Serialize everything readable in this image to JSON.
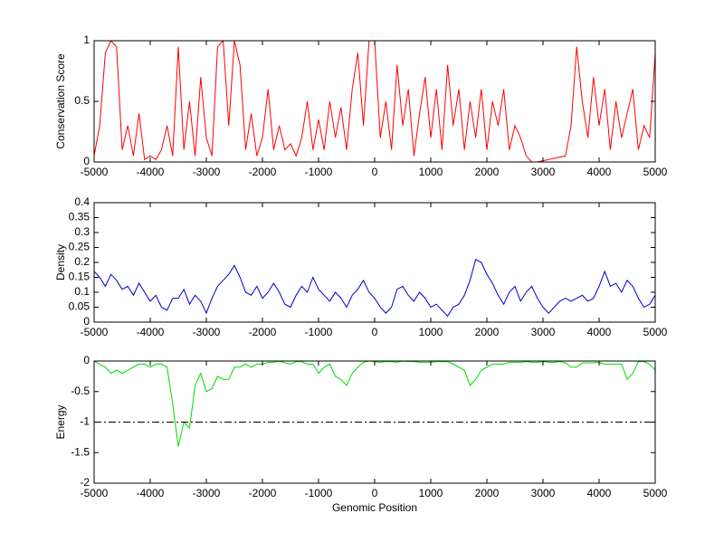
{
  "chart_data": [
    {
      "type": "line",
      "ylabel": "Conservation Score",
      "color": "#ff0000",
      "x": [
        -5000,
        -4900,
        -4800,
        -4700,
        -4600,
        -4500,
        -4400,
        -4300,
        -4200,
        -4100,
        -4000,
        -3900,
        -3800,
        -3700,
        -3600,
        -3500,
        -3400,
        -3300,
        -3200,
        -3100,
        -3000,
        -2900,
        -2800,
        -2700,
        -2600,
        -2500,
        -2400,
        -2300,
        -2200,
        -2100,
        -2000,
        -1900,
        -1800,
        -1700,
        -1600,
        -1500,
        -1400,
        -1300,
        -1200,
        -1100,
        -1000,
        -900,
        -800,
        -700,
        -600,
        -500,
        -400,
        -300,
        -200,
        -100,
        0,
        100,
        200,
        300,
        400,
        500,
        600,
        700,
        800,
        900,
        1000,
        1100,
        1200,
        1300,
        1400,
        1500,
        1600,
        1700,
        1800,
        1900,
        2000,
        2100,
        2200,
        2300,
        2400,
        2500,
        2600,
        2700,
        2800,
        2900,
        3000,
        3100,
        3200,
        3300,
        3400,
        3500,
        3600,
        3700,
        3800,
        3900,
        4000,
        4100,
        4200,
        4300,
        4400,
        4500,
        4600,
        4700,
        4800,
        4900,
        5000
      ],
      "values": [
        0.05,
        0.3,
        0.9,
        1,
        0.95,
        0.1,
        0.3,
        0.05,
        0.4,
        0.02,
        0.05,
        0.02,
        0.1,
        0.3,
        0.05,
        0.95,
        0.1,
        0.5,
        0.05,
        0.7,
        0.2,
        0.05,
        0.95,
        1,
        0.3,
        1,
        0.8,
        0.1,
        0.4,
        0.05,
        0.2,
        0.6,
        0.1,
        0.3,
        0.1,
        0.15,
        0.05,
        0.2,
        0.5,
        0.1,
        0.35,
        0.1,
        0.5,
        0.2,
        0.45,
        0.1,
        0.6,
        0.9,
        0.3,
        1,
        1,
        0.2,
        0.5,
        0.1,
        0.8,
        0.3,
        0.6,
        0.05,
        0.4,
        0.7,
        0.2,
        0.6,
        0.1,
        0.8,
        0.3,
        0.6,
        0.1,
        0.5,
        0.2,
        0.6,
        0.1,
        0.5,
        0.3,
        0.6,
        0.1,
        0.3,
        0.2,
        0.05,
        0,
        0,
        0.01,
        0.02,
        0.03,
        0.04,
        0.05,
        0.3,
        0.95,
        0.5,
        0.2,
        0.7,
        0.3,
        0.6,
        0.1,
        0.5,
        0.2,
        0.4,
        0.6,
        0.1,
        0.3,
        0.2,
        0.9
      ],
      "xlim": [
        -5000,
        5000
      ],
      "xticks": [
        -5000,
        -4000,
        -3000,
        -2000,
        -1000,
        0,
        1000,
        2000,
        3000,
        4000,
        5000
      ],
      "ylim": [
        0,
        1
      ],
      "yticks": [
        0,
        0.5,
        1
      ]
    },
    {
      "type": "line",
      "ylabel": "Density",
      "color": "#0000cc",
      "x": [
        -5000,
        -4900,
        -4800,
        -4700,
        -4600,
        -4500,
        -4400,
        -4300,
        -4200,
        -4100,
        -4000,
        -3900,
        -3800,
        -3700,
        -3600,
        -3500,
        -3400,
        -3300,
        -3200,
        -3100,
        -3000,
        -2900,
        -2800,
        -2700,
        -2600,
        -2500,
        -2400,
        -2300,
        -2200,
        -2100,
        -2000,
        -1900,
        -1800,
        -1700,
        -1600,
        -1500,
        -1400,
        -1300,
        -1200,
        -1100,
        -1000,
        -900,
        -800,
        -700,
        -600,
        -500,
        -400,
        -300,
        -200,
        -100,
        0,
        100,
        200,
        300,
        400,
        500,
        600,
        700,
        800,
        900,
        1000,
        1100,
        1200,
        1300,
        1400,
        1500,
        1600,
        1700,
        1800,
        1900,
        2000,
        2100,
        2200,
        2300,
        2400,
        2500,
        2600,
        2700,
        2800,
        2900,
        3000,
        3100,
        3200,
        3300,
        3400,
        3500,
        3600,
        3700,
        3800,
        3900,
        4000,
        4100,
        4200,
        4300,
        4400,
        4500,
        4600,
        4700,
        4800,
        4900,
        5000
      ],
      "values": [
        0.17,
        0.15,
        0.12,
        0.16,
        0.14,
        0.11,
        0.12,
        0.09,
        0.13,
        0.1,
        0.07,
        0.09,
        0.05,
        0.04,
        0.08,
        0.08,
        0.11,
        0.06,
        0.09,
        0.07,
        0.03,
        0.08,
        0.12,
        0.14,
        0.16,
        0.19,
        0.15,
        0.1,
        0.09,
        0.12,
        0.08,
        0.1,
        0.13,
        0.1,
        0.06,
        0.05,
        0.09,
        0.12,
        0.1,
        0.15,
        0.11,
        0.09,
        0.07,
        0.1,
        0.08,
        0.05,
        0.09,
        0.11,
        0.14,
        0.1,
        0.08,
        0.05,
        0.03,
        0.05,
        0.11,
        0.12,
        0.09,
        0.07,
        0.1,
        0.08,
        0.05,
        0.06,
        0.04,
        0.02,
        0.05,
        0.06,
        0.09,
        0.14,
        0.21,
        0.2,
        0.16,
        0.13,
        0.09,
        0.06,
        0.1,
        0.12,
        0.07,
        0.1,
        0.12,
        0.08,
        0.05,
        0.03,
        0.05,
        0.07,
        0.08,
        0.07,
        0.08,
        0.09,
        0.07,
        0.08,
        0.12,
        0.17,
        0.12,
        0.13,
        0.1,
        0.14,
        0.12,
        0.08,
        0.05,
        0.06,
        0.09
      ],
      "xlim": [
        -5000,
        5000
      ],
      "xticks": [
        -5000,
        -4000,
        -3000,
        -2000,
        -1000,
        0,
        1000,
        2000,
        3000,
        4000,
        5000
      ],
      "ylim": [
        0,
        0.4
      ],
      "yticks": [
        0,
        0.05,
        0.1,
        0.15,
        0.2,
        0.25,
        0.3,
        0.35,
        0.4
      ]
    },
    {
      "type": "line",
      "ylabel": "Energy",
      "xlabel": "Genomic Position",
      "color": "#00dd00",
      "hline": -1,
      "x": [
        -5000,
        -4900,
        -4800,
        -4700,
        -4600,
        -4500,
        -4400,
        -4300,
        -4200,
        -4100,
        -4000,
        -3900,
        -3800,
        -3700,
        -3600,
        -3500,
        -3400,
        -3300,
        -3200,
        -3100,
        -3000,
        -2900,
        -2800,
        -2700,
        -2600,
        -2500,
        -2400,
        -2300,
        -2200,
        -2100,
        -2000,
        -1900,
        -1800,
        -1700,
        -1600,
        -1500,
        -1400,
        -1300,
        -1200,
        -1100,
        -1000,
        -900,
        -800,
        -700,
        -600,
        -500,
        -400,
        -300,
        -200,
        -100,
        0,
        100,
        200,
        300,
        400,
        500,
        600,
        700,
        800,
        900,
        1000,
        1100,
        1200,
        1300,
        1400,
        1500,
        1600,
        1700,
        1800,
        1900,
        2000,
        2100,
        2200,
        2300,
        2400,
        2500,
        2600,
        2700,
        2800,
        2900,
        3000,
        3100,
        3200,
        3300,
        3400,
        3500,
        3600,
        3700,
        3800,
        3900,
        4000,
        4100,
        4200,
        4300,
        4400,
        4500,
        4600,
        4700,
        4800,
        4900,
        5000
      ],
      "values": [
        0,
        -0.05,
        -0.1,
        -0.2,
        -0.15,
        -0.2,
        -0.15,
        -0.1,
        -0.05,
        -0.05,
        -0.1,
        -0.05,
        -0.05,
        -0.1,
        -0.7,
        -1.4,
        -1,
        -1.1,
        -0.4,
        -0.2,
        -0.5,
        -0.45,
        -0.25,
        -0.3,
        -0.3,
        -0.1,
        -0.1,
        -0.05,
        -0.1,
        -0.05,
        -0.05,
        -0.02,
        -0.02,
        0,
        -0.03,
        -0.05,
        -0.01,
        -0.01,
        -0.05,
        -0.05,
        -0.2,
        -0.1,
        -0.05,
        -0.25,
        -0.3,
        -0.4,
        -0.2,
        -0.1,
        -0.02,
        0,
        -0.01,
        -0.02,
        -0.01,
        -0.01,
        -0.02,
        0,
        -0.01,
        -0.01,
        -0.02,
        -0.02,
        -0.02,
        -0.01,
        -0.01,
        -0.01,
        -0.05,
        -0.1,
        -0.15,
        -0.4,
        -0.3,
        -0.15,
        -0.1,
        -0.05,
        -0.05,
        -0.05,
        -0.02,
        -0.02,
        -0.02,
        -0.01,
        -0.02,
        -0.02,
        -0.01,
        -0.02,
        -0.02,
        -0.01,
        -0.03,
        -0.1,
        -0.1,
        -0.03,
        -0.03,
        -0.03,
        -0.02,
        -0.05,
        -0.05,
        -0.05,
        -0.05,
        -0.3,
        -0.2,
        -0.01,
        -0.01,
        -0.05,
        -0.15
      ],
      "xlim": [
        -5000,
        5000
      ],
      "xticks": [
        -5000,
        -4000,
        -3000,
        -2000,
        -1000,
        0,
        1000,
        2000,
        3000,
        4000,
        5000
      ],
      "ylim": [
        -2,
        0
      ],
      "yticks": [
        -2,
        -1.5,
        -1,
        -0.5,
        0
      ]
    }
  ]
}
